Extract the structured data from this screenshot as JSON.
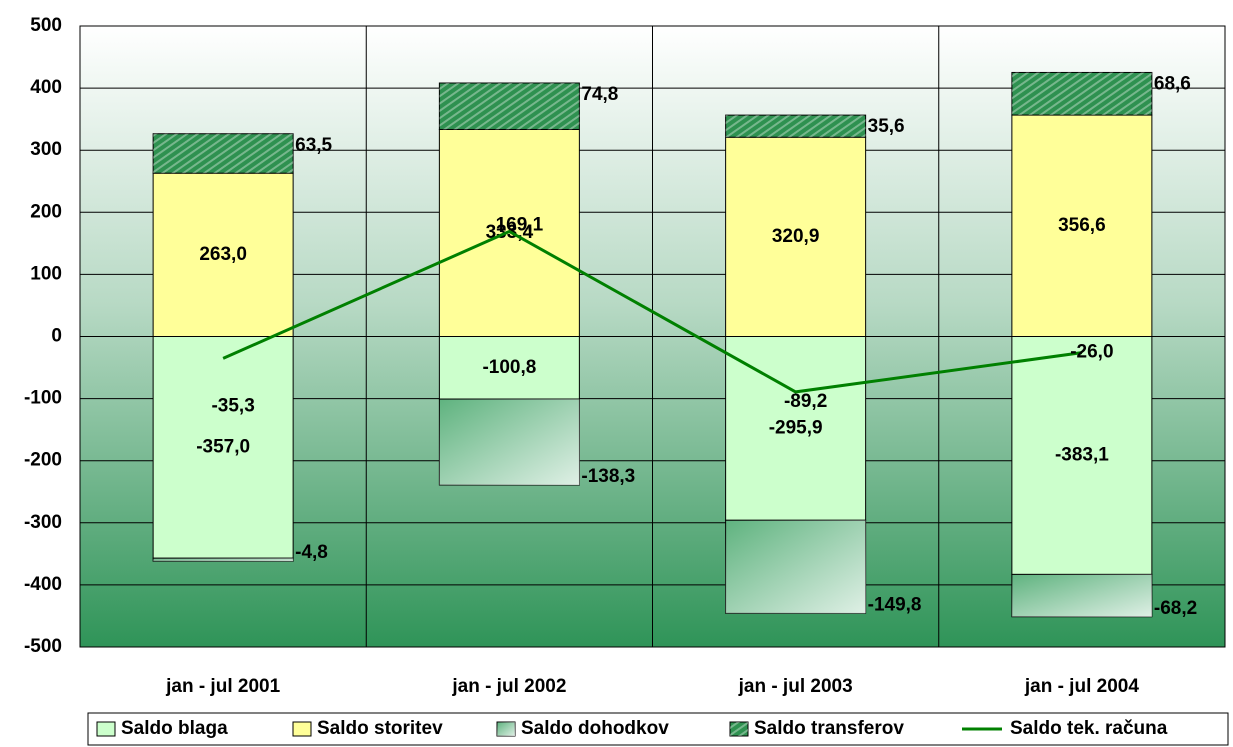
{
  "chart_data": {
    "type": "bar",
    "categories": [
      "jan - jul 2001",
      "jan - jul 2002",
      "jan - jul 2003",
      "jan - jul 2004"
    ],
    "series": [
      {
        "name": "Saldo blaga",
        "color": "#ccffcc",
        "values": [
          -357.0,
          -100.8,
          -295.9,
          -383.1
        ],
        "value_labels": [
          "-357,0",
          "-100,8",
          "-295,9",
          "-383,1"
        ]
      },
      {
        "name": "Saldo storitev",
        "color": "#ffff99",
        "values": [
          263.0,
          333.4,
          320.9,
          356.6
        ],
        "value_labels": [
          "263,0",
          "333,4",
          "320,9",
          "356,6"
        ]
      },
      {
        "name": "Saldo dohodkov",
        "color": "#5fb37f",
        "values": [
          -4.8,
          -138.3,
          -149.8,
          -68.2
        ],
        "value_labels": [
          "-4,8",
          "-138,3",
          "-149,8",
          "-68,2"
        ]
      },
      {
        "name": "Saldo transferov",
        "color": "#2e9150",
        "values": [
          63.5,
          74.8,
          35.6,
          68.6
        ],
        "value_labels": [
          "63,5",
          "74,8",
          "35,6",
          "68,6"
        ]
      },
      {
        "name": "Saldo tek. računa",
        "type": "line",
        "color": "#008000",
        "values": [
          -35.3,
          169.1,
          -89.2,
          -26.0
        ],
        "value_labels": [
          "-35,3",
          "169,1",
          "-89,2",
          "-26,0"
        ]
      }
    ],
    "ylim": [
      -500,
      500
    ],
    "yticks": [
      -500,
      -400,
      -300,
      -200,
      -100,
      0,
      100,
      200,
      300,
      400,
      500
    ],
    "grid": true,
    "stacked": true,
    "legend": "bottom"
  }
}
